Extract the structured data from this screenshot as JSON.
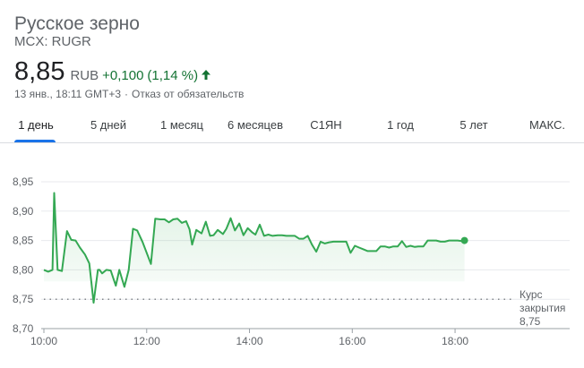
{
  "header": {
    "name": "Русское зерно",
    "ticker": "MCX: RUGR",
    "price": "8,85",
    "currency": "RUB",
    "change": "+0,100",
    "change_pct": "(1,14 %)",
    "timestamp": "13 янв., 18:11 GMT+3",
    "separator": "·",
    "disclaimer": "Отказ от обязательств"
  },
  "colors": {
    "up": "#137333",
    "line": "#34a853",
    "accent": "#1a73e8"
  },
  "icons": {
    "change_direction": "arrow-up-icon"
  },
  "tabs": [
    {
      "label": "1 день",
      "active": true
    },
    {
      "label": "5 дней",
      "active": false
    },
    {
      "label": "1 месяц",
      "active": false
    },
    {
      "label": "6 месяцев",
      "active": false
    },
    {
      "label": "С1ЯН",
      "active": false
    },
    {
      "label": "1 год",
      "active": false
    },
    {
      "label": "5 лет",
      "active": false
    },
    {
      "label": "МАКС.",
      "active": false
    }
  ],
  "chart_data": {
    "type": "line",
    "x_unit": "time of day",
    "x": [
      "10:00",
      "10:05",
      "10:10",
      "10:12",
      "10:16",
      "10:21",
      "10:27",
      "10:32",
      "10:37",
      "10:42",
      "10:48",
      "10:53",
      "10:58",
      "11:03",
      "11:05",
      "11:08",
      "11:13",
      "11:18",
      "11:24",
      "11:28",
      "11:34",
      "11:39",
      "11:44",
      "11:49",
      "11:55",
      "12:05",
      "12:10",
      "12:16",
      "12:21",
      "12:26",
      "12:31",
      "12:36",
      "12:41",
      "12:46",
      "12:50",
      "12:53",
      "12:58",
      "13:04",
      "13:09",
      "13:14",
      "13:18",
      "13:23",
      "13:29",
      "13:33",
      "13:38",
      "13:43",
      "13:48",
      "13:53",
      "13:58",
      "14:03",
      "14:07",
      "14:12",
      "14:17",
      "14:22",
      "14:27",
      "14:33",
      "14:38",
      "14:43",
      "14:48",
      "14:53",
      "14:58",
      "15:03",
      "15:08",
      "15:13",
      "15:18",
      "15:23",
      "15:28",
      "15:33",
      "15:38",
      "15:43",
      "15:48",
      "15:53",
      "15:58",
      "16:03",
      "16:08",
      "16:13",
      "16:18",
      "16:23",
      "16:28",
      "16:33",
      "16:38",
      "16:43",
      "16:48",
      "16:53",
      "16:58",
      "17:03",
      "17:08",
      "17:13",
      "17:17",
      "17:20",
      "17:23",
      "17:28",
      "17:33",
      "17:38",
      "17:43",
      "17:48",
      "17:53",
      "17:58",
      "18:03",
      "18:08",
      "18:11"
    ],
    "series": [
      {
        "values": [
          8.8,
          8.797,
          8.8,
          8.931,
          8.8,
          8.798,
          8.866,
          8.851,
          8.85,
          8.838,
          8.826,
          8.811,
          8.744,
          8.8,
          8.8,
          8.794,
          8.8,
          8.799,
          8.773,
          8.8,
          8.771,
          8.8,
          8.87,
          8.867,
          8.848,
          8.81,
          8.887,
          8.886,
          8.886,
          8.881,
          8.886,
          8.887,
          8.88,
          8.883,
          8.869,
          8.843,
          8.868,
          8.862,
          8.882,
          8.858,
          8.859,
          8.868,
          8.861,
          8.87,
          8.888,
          8.867,
          8.879,
          8.859,
          8.871,
          8.864,
          8.86,
          8.877,
          8.858,
          8.86,
          8.858,
          8.859,
          8.859,
          8.858,
          8.858,
          8.858,
          8.853,
          8.853,
          8.858,
          8.843,
          8.831,
          8.848,
          8.845,
          8.847,
          8.848,
          8.848,
          8.848,
          8.848,
          8.829,
          8.841,
          8.838,
          8.835,
          8.832,
          8.832,
          8.832,
          8.84,
          8.84,
          8.838,
          8.84,
          8.84,
          8.849,
          8.839,
          8.841,
          8.839,
          8.84,
          8.84,
          8.84,
          8.85,
          8.85,
          8.85,
          8.848,
          8.848,
          8.85,
          8.85,
          8.85,
          8.849,
          8.85
        ]
      }
    ],
    "y_ticks": [
      "8,95",
      "8,90",
      "8,85",
      "8,80",
      "8,75",
      "8,70"
    ],
    "x_ticks": [
      "10:00",
      "12:00",
      "14:00",
      "16:00",
      "18:00"
    ],
    "ylim": [
      8.7,
      8.95
    ],
    "xlim": [
      "10:00",
      "19:10"
    ],
    "previous_close": 8.75,
    "previous_close_label": [
      "Курс",
      "закрытия",
      "8,75"
    ],
    "grid": true
  }
}
